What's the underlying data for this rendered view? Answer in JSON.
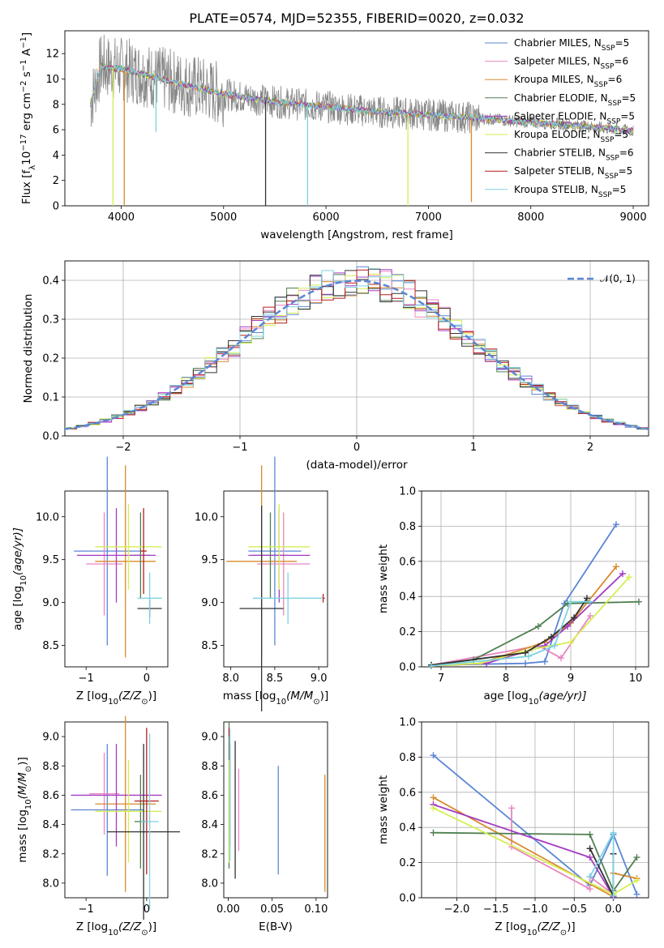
{
  "figure": {
    "title": "PLATE=0574, MJD=52355, FIBERID=0020, z=0.032"
  },
  "series": [
    {
      "name": "Chabrier MILES, N",
      "nssp": "5",
      "color": "#5b86d6"
    },
    {
      "name": "Salpeter MILES, N",
      "nssp": "6",
      "color": "#e886c2"
    },
    {
      "name": "Kroupa MILES, N",
      "nssp": "6",
      "color": "#d98a2b"
    },
    {
      "name": "Chabrier ELODIE, N",
      "nssp": "5",
      "color": "#4f7f50"
    },
    {
      "name": "Salpeter ELODIE, N",
      "nssp": "5",
      "color": "#a43cc2"
    },
    {
      "name": "Kroupa ELODIE, N",
      "nssp": "5",
      "color": "#d6ee52"
    },
    {
      "name": "Chabrier STELIB, N",
      "nssp": "6",
      "color": "#333333"
    },
    {
      "name": "Salpeter STELIB, N",
      "nssp": "5",
      "color": "#b71c1c"
    },
    {
      "name": "Kroupa STELIB, N",
      "nssp": "5",
      "color": "#7dd3e0"
    }
  ],
  "chart_data": [
    {
      "id": "spectrum",
      "type": "line",
      "title": "PLATE=0574, MJD=52355, FIBERID=0020, z=0.032",
      "xlabel": "wavelength [Angstrom, rest frame]",
      "ylabel": "Flux [f",
      "ylabel_sub": "λ",
      "ylabel_rest": "10",
      "ylabel_exp": "−17",
      "ylabel_tail": " erg cm",
      "ylabel_tail_exp": "−2",
      "ylabel_tail2": " s",
      "ylabel_tail2_exp": "−1",
      "ylabel_tail3": " A",
      "ylabel_tail3_exp": "−1",
      "ylabel_tail4": "]",
      "xlim": [
        3450,
        9150
      ],
      "ylim": [
        0,
        13.8
      ],
      "xticks": [
        4000,
        5000,
        6000,
        7000,
        8000,
        9000
      ],
      "yticks": [
        0,
        2,
        4,
        6,
        8,
        10,
        12
      ],
      "continuum_x": [
        3700,
        3800,
        4000,
        4300,
        4600,
        5000,
        5500,
        6000,
        6500,
        7000,
        7500,
        8000,
        8500,
        9000
      ],
      "continuum_y": [
        8.0,
        11.0,
        10.8,
        10.2,
        9.6,
        8.8,
        8.2,
        7.8,
        7.4,
        7.2,
        6.9,
        6.6,
        6.3,
        5.9
      ],
      "drops": [
        {
          "x": 3920,
          "y": 0,
          "series": 5
        },
        {
          "x": 4030,
          "y": 0,
          "series": 2
        },
        {
          "x": 4340,
          "y": 5.8,
          "series": 8
        },
        {
          "x": 5410,
          "y": 0,
          "series": 6
        },
        {
          "x": 5820,
          "y": 0,
          "series": 8
        },
        {
          "x": 6800,
          "y": 0,
          "series": 5
        },
        {
          "x": 7420,
          "y": 0.3,
          "series": 2
        }
      ]
    },
    {
      "id": "residual-histogram",
      "type": "bar",
      "xlabel": "(data-model)/error",
      "ylabel": "Normed distribution",
      "xlim": [
        -2.5,
        2.5
      ],
      "ylim": [
        0,
        0.45
      ],
      "xticks": [
        -2,
        -1,
        0,
        1,
        2
      ],
      "yticks": [
        0.0,
        0.1,
        0.2,
        0.3,
        0.4
      ],
      "bin_width": 0.1,
      "legend": "𝒩(0, 1)",
      "legend_position": "top-right",
      "grid": true
    },
    {
      "id": "age-vs-z",
      "type": "scatter",
      "xlabel": "Z [log",
      "xlabel_sub": "10",
      "xlabel_rest": "(Z/Z",
      "xlabel_sub2": "⊙",
      "xlabel_tail": ")]",
      "ylabel": "age  [log",
      "ylabel_sub": "10",
      "ylabel_rest": "(age/yr)]",
      "xlim": [
        -1.35,
        0.35
      ],
      "ylim": [
        8.25,
        10.3
      ],
      "xticks": [
        -1,
        0
      ],
      "yticks": [
        8.5,
        9.0,
        9.5,
        10.0
      ],
      "points": [
        {
          "s": 0,
          "x": -0.65,
          "y": 9.6,
          "xerr": 0.55,
          "yerr": 1.1
        },
        {
          "s": 1,
          "x": -0.7,
          "y": 9.45,
          "xerr": 0.3,
          "yerr": 0.6
        },
        {
          "s": 2,
          "x": -0.35,
          "y": 9.48,
          "xerr": 0.5,
          "yerr": 1.12
        },
        {
          "s": 3,
          "x": -0.1,
          "y": 9.55,
          "xerr": 0.15,
          "yerr": 0.5
        },
        {
          "s": 4,
          "x": -0.5,
          "y": 9.55,
          "xerr": 0.65,
          "yerr": 0.55
        },
        {
          "s": 5,
          "x": -0.3,
          "y": 9.65,
          "xerr": 0.55,
          "yerr": 0.5
        },
        {
          "s": 6,
          "x": 0.05,
          "y": 8.93,
          "xerr": 0.2,
          "yerr": 0.1
        },
        {
          "s": 7,
          "x": -0.05,
          "y": 9.6,
          "xerr": 0.05,
          "yerr": 0.5
        },
        {
          "s": 8,
          "x": 0.05,
          "y": 9.05,
          "xerr": 0.2,
          "yerr": 0.3
        }
      ]
    },
    {
      "id": "age-vs-mass",
      "type": "scatter",
      "xlabel": "mass [log",
      "xlabel_sub": "10",
      "xlabel_rest": "(M/M",
      "xlabel_sub2": "⊙",
      "xlabel_tail": ")]",
      "xlim": [
        7.92,
        9.1
      ],
      "ylim": [
        8.25,
        10.3
      ],
      "xticks": [
        8.0,
        8.5,
        9.0
      ],
      "yticks": [
        8.5,
        9.0,
        9.5,
        10.0
      ],
      "points": [
        {
          "s": 0,
          "x": 8.5,
          "y": 9.6,
          "xerr": 0.3,
          "yerr": 1.1
        },
        {
          "s": 1,
          "x": 8.6,
          "y": 9.45,
          "xerr": 0.3,
          "yerr": 0.6
        },
        {
          "s": 2,
          "x": 8.35,
          "y": 9.48,
          "xerr": 0.4,
          "yerr": 1.12
        },
        {
          "s": 3,
          "x": 8.45,
          "y": 9.55,
          "xerr": 0.2,
          "yerr": 0.5
        },
        {
          "s": 4,
          "x": 8.55,
          "y": 9.55,
          "xerr": 0.35,
          "yerr": 0.55
        },
        {
          "s": 5,
          "x": 8.55,
          "y": 9.65,
          "xerr": 0.35,
          "yerr": 0.5
        },
        {
          "s": 6,
          "x": 8.35,
          "y": 8.93,
          "xerr": 0.25,
          "yerr": 1.2
        },
        {
          "s": 7,
          "x": 9.05,
          "y": 9.05,
          "xerr": 0.02,
          "yerr": 0.05
        },
        {
          "s": 8,
          "x": 8.65,
          "y": 9.05,
          "xerr": 0.4,
          "yerr": 0.3
        }
      ]
    },
    {
      "id": "mass-weight-vs-age",
      "type": "line",
      "xlabel": "age  [log",
      "xlabel_sub": "10",
      "xlabel_rest": "(age/yr)]",
      "ylabel": "mass weight",
      "xlim": [
        6.7,
        10.2
      ],
      "ylim": [
        0,
        1.0
      ],
      "xticks": [
        7,
        8,
        9,
        10
      ],
      "yticks": [
        0.0,
        0.2,
        0.4,
        0.6,
        0.8,
        1.0
      ],
      "grid": true,
      "lines": [
        {
          "s": 0,
          "x": [
            6.85,
            8.3,
            8.6,
            8.9,
            9.7
          ],
          "y": [
            0.01,
            0.02,
            0.03,
            0.36,
            0.81
          ]
        },
        {
          "s": 1,
          "x": [
            6.85,
            8.5,
            8.85,
            9.3
          ],
          "y": [
            0.01,
            0.12,
            0.05,
            0.29
          ]
        },
        {
          "s": 2,
          "x": [
            6.85,
            7.6,
            8.6,
            9.0,
            9.7
          ],
          "y": [
            0.005,
            0.02,
            0.14,
            0.25,
            0.57
          ]
        },
        {
          "s": 3,
          "x": [
            6.85,
            7.5,
            8.5,
            8.95,
            10.05
          ],
          "y": [
            0.01,
            0.04,
            0.23,
            0.36,
            0.37
          ]
        },
        {
          "s": 4,
          "x": [
            6.85,
            7.7,
            8.6,
            8.95,
            9.8
          ],
          "y": [
            0.005,
            0.02,
            0.12,
            0.23,
            0.53
          ]
        },
        {
          "s": 5,
          "x": [
            6.85,
            7.6,
            8.4,
            9.0,
            9.9
          ],
          "y": [
            0.005,
            0.02,
            0.1,
            0.14,
            0.51
          ]
        },
        {
          "s": 6,
          "x": [
            6.85,
            8.3,
            8.7,
            9.05,
            9.25
          ],
          "y": [
            0.01,
            0.08,
            0.17,
            0.28,
            0.39
          ]
        },
        {
          "s": 8,
          "x": [
            6.85,
            8.35,
            8.75,
            9.0,
            9.3
          ],
          "y": [
            0.005,
            0.06,
            0.12,
            0.37,
            0.37
          ]
        }
      ]
    },
    {
      "id": "mass-vs-z",
      "type": "scatter",
      "xlabel": "Z [log",
      "xlabel_sub": "10",
      "xlabel_rest": "(Z/Z",
      "xlabel_sub2": "⊙",
      "xlabel_tail": ")]",
      "ylabel": "mass [log",
      "ylabel_sub": "10",
      "ylabel_rest": "(M/M",
      "ylabel_sub2": "⊙",
      "ylabel_tail": ")]",
      "xlim": [
        -1.35,
        0.35
      ],
      "ylim": [
        7.9,
        9.1
      ],
      "xticks": [
        -1,
        0
      ],
      "yticks": [
        8.0,
        8.2,
        8.4,
        8.6,
        8.8,
        9.0
      ],
      "points": [
        {
          "s": 0,
          "x": -0.65,
          "y": 8.5,
          "xerr": 0.6,
          "yerr": 0.45
        },
        {
          "s": 1,
          "x": -0.7,
          "y": 8.61,
          "xerr": 0.25,
          "yerr": 0.28
        },
        {
          "s": 2,
          "x": -0.35,
          "y": 8.54,
          "xerr": 0.5,
          "yerr": 0.6
        },
        {
          "s": 3,
          "x": -0.1,
          "y": 8.42,
          "xerr": 0.1,
          "yerr": 0.32
        },
        {
          "s": 4,
          "x": -0.5,
          "y": 8.6,
          "xerr": 0.75,
          "yerr": 0.35
        },
        {
          "s": 5,
          "x": -0.3,
          "y": 8.49,
          "xerr": 0.55,
          "yerr": 0.35
        },
        {
          "s": 6,
          "x": -0.05,
          "y": 8.35,
          "xerr": 0.6,
          "yerr": 0.6
        },
        {
          "s": 7,
          "x": 0.0,
          "y": 8.56,
          "xerr": 0.2,
          "yerr": 0.5
        },
        {
          "s": 8,
          "x": 0.05,
          "y": 8.42,
          "xerr": 0.15,
          "yerr": 0.6
        }
      ]
    },
    {
      "id": "mass-vs-ebv",
      "type": "scatter",
      "xlabel": "E(B-V)",
      "xlim": [
        -0.005,
        0.113
      ],
      "ylim": [
        7.9,
        9.1
      ],
      "xticks": [
        0.0,
        0.05,
        0.1
      ],
      "yticks": [
        8.0,
        8.2,
        8.4,
        8.6,
        8.8,
        9.0
      ],
      "points": [
        {
          "s": 0,
          "x": 0.057,
          "y": 8.43,
          "xerr": 0.0,
          "yerr": 0.37
        },
        {
          "s": 1,
          "x": 0.012,
          "y": 8.5,
          "xerr": 0.0,
          "yerr": 0.28
        },
        {
          "s": 2,
          "x": 0.11,
          "y": 8.34,
          "xerr": 0.0,
          "yerr": 0.4
        },
        {
          "s": 3,
          "x": 0.001,
          "y": 8.6,
          "xerr": 0.0,
          "yerr": 0.5
        },
        {
          "s": 4,
          "x": 0.002,
          "y": 8.6,
          "xerr": 0.0,
          "yerr": 0.35
        },
        {
          "s": 5,
          "x": 0.001,
          "y": 8.49,
          "xerr": 0.0,
          "yerr": 0.35
        },
        {
          "s": 6,
          "x": 0.008,
          "y": 8.5,
          "xerr": 0.0,
          "yerr": 0.47
        },
        {
          "s": 7,
          "x": 0.001,
          "y": 9.03,
          "xerr": 0.0,
          "yerr": 0.03
        },
        {
          "s": 8,
          "x": 0.002,
          "y": 8.6,
          "xerr": 0.0,
          "yerr": 0.45
        }
      ]
    },
    {
      "id": "mass-weight-vs-z",
      "type": "line",
      "xlabel": "Z [log",
      "xlabel_sub": "10",
      "xlabel_rest": "(Z/Z",
      "xlabel_sub2": "⊙",
      "xlabel_tail": ")]",
      "ylabel": "mass weight",
      "xlim": [
        -2.45,
        0.45
      ],
      "ylim": [
        0,
        1.0
      ],
      "xticks": [
        -2.0,
        -1.5,
        -1.0,
        -0.5,
        0.0
      ],
      "yticks": [
        0.0,
        0.2,
        0.4,
        0.6,
        0.8,
        1.0
      ],
      "grid": true,
      "lines": [
        {
          "s": 0,
          "x": [
            -2.3,
            -0.3,
            0.0,
            0.3
          ],
          "y": [
            0.81,
            0.07,
            0.36,
            0.02
          ]
        },
        {
          "s": 1,
          "x": [
            -1.3,
            -1.3,
            -0.3,
            -0.3,
            0.0
          ],
          "y": [
            0.51,
            0.29,
            0.05,
            0.12,
            0.02
          ]
        },
        {
          "s": 2,
          "x": [
            -2.3,
            0.0,
            0.0,
            0.3
          ],
          "y": [
            0.57,
            0.005,
            0.14,
            0.11
          ]
        },
        {
          "s": 3,
          "x": [
            -2.3,
            -0.3,
            0.0,
            0.3
          ],
          "y": [
            0.37,
            0.36,
            0.04,
            0.23
          ]
        },
        {
          "s": 4,
          "x": [
            -2.3,
            -0.3,
            0.0
          ],
          "y": [
            0.53,
            0.23,
            0.005
          ]
        },
        {
          "s": 5,
          "x": [
            -2.3,
            0.0,
            0.3
          ],
          "y": [
            0.51,
            0.02,
            0.1
          ]
        },
        {
          "s": 6,
          "x": [
            -0.3,
            0.0,
            0.0
          ],
          "y": [
            0.28,
            0.01,
            0.25
          ]
        },
        {
          "s": 8,
          "x": [
            -0.3,
            0.0,
            0.0
          ],
          "y": [
            0.12,
            0.37,
            0.01
          ]
        }
      ]
    }
  ]
}
